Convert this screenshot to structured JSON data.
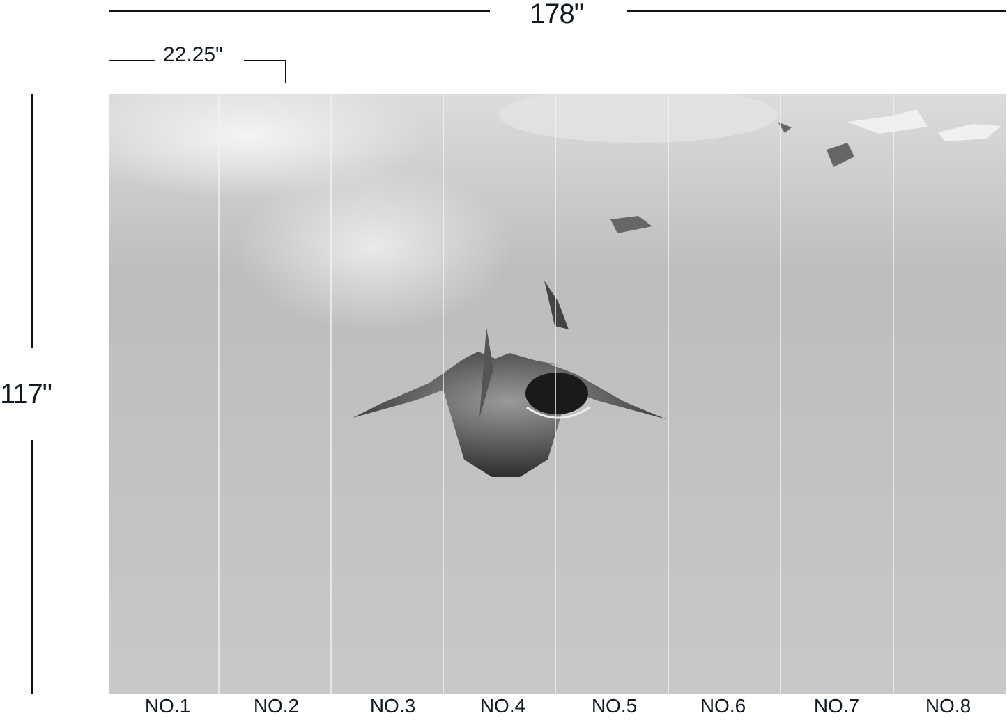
{
  "dimensions": {
    "total_width": "178\"",
    "total_height": "117\"",
    "panel_width": "22.25\""
  },
  "panels": [
    "NO.1",
    "NO.2",
    "NO.3",
    "NO.4",
    "NO.5",
    "NO.6",
    "NO.7",
    "NO.8"
  ],
  "image": {
    "subject": "shark-underwater",
    "colors": {
      "water": "#c4c4c4",
      "surface": "#e8e8e8",
      "shark": "#3a3a3a"
    }
  }
}
